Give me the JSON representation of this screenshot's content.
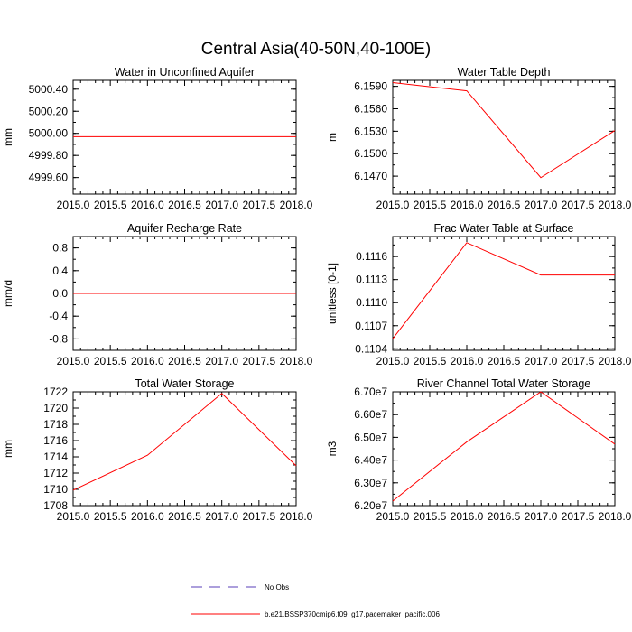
{
  "figure": {
    "title": "Central Asia(40-50N,40-100E)",
    "legend": [
      {
        "label": "No Obs",
        "color": "#5a3fb8",
        "dash": "dashed"
      },
      {
        "label": "b.e21.BSSP370cmip6.f09_g17.pacemaker_pacific.006",
        "color": "#ff0000",
        "dash": "solid"
      }
    ]
  },
  "chart_data": [
    {
      "type": "line",
      "title": "Water in Unconfined Aquifer",
      "ylabel": "mm",
      "xlim": [
        2015.0,
        2018.0
      ],
      "ylim": [
        4999.45,
        5000.48
      ],
      "x_ticks": [
        "2015.0",
        "2015.5",
        "2016.0",
        "2016.5",
        "2017.0",
        "2017.5",
        "2018.0"
      ],
      "y_ticks": [
        {
          "value": 5000.4,
          "label": "5000.40"
        },
        {
          "value": 5000.2,
          "label": "5000.20"
        },
        {
          "value": 5000.0,
          "label": "5000.00"
        },
        {
          "value": 4999.8,
          "label": "4999.80"
        },
        {
          "value": 4999.6,
          "label": "4999.60"
        }
      ],
      "x": [
        2015,
        2016,
        2017,
        2018
      ],
      "series": [
        {
          "values": [
            4999.97,
            4999.97,
            4999.97,
            4999.97
          ]
        }
      ]
    },
    {
      "type": "line",
      "title": "Water Table Depth",
      "ylabel": "m",
      "xlim": [
        2015.0,
        2018.0
      ],
      "ylim": [
        6.1446,
        6.1598
      ],
      "x_ticks": [
        "2015.0",
        "2015.5",
        "2016.0",
        "2016.5",
        "2017.0",
        "2017.5",
        "2018.0"
      ],
      "y_ticks": [
        {
          "value": 6.159,
          "label": "6.1590"
        },
        {
          "value": 6.156,
          "label": "6.1560"
        },
        {
          "value": 6.153,
          "label": "6.1530"
        },
        {
          "value": 6.15,
          "label": "6.1500"
        },
        {
          "value": 6.147,
          "label": "6.1470"
        }
      ],
      "x": [
        2015,
        2016,
        2017,
        2018
      ],
      "series": [
        {
          "values": [
            6.1595,
            6.1584,
            6.1468,
            6.1531
          ]
        }
      ]
    },
    {
      "type": "line",
      "title": "Aquifer Recharge Rate",
      "ylabel": "mm/d",
      "xlim": [
        2015.0,
        2018.0
      ],
      "ylim": [
        -1.0,
        1.0
      ],
      "x_ticks": [
        "2015.0",
        "2015.5",
        "2016.0",
        "2016.5",
        "2017.0",
        "2017.5",
        "2018.0"
      ],
      "y_ticks": [
        {
          "value": 0.8,
          "label": "0.8"
        },
        {
          "value": 0.4,
          "label": "0.4"
        },
        {
          "value": 0.0,
          "label": "0.0"
        },
        {
          "value": -0.4,
          "label": "-0.4"
        },
        {
          "value": -0.8,
          "label": "-0.8"
        }
      ],
      "x": [
        2015,
        2016,
        2017,
        2018
      ],
      "series": [
        {
          "values": [
            0.0,
            0.0,
            0.0,
            0.0
          ]
        }
      ]
    },
    {
      "type": "line",
      "title": "Frac Water Table at Surface",
      "ylabel": "unitless [0-1]",
      "xlim": [
        2015.0,
        2018.0
      ],
      "ylim": [
        0.11038,
        0.11186
      ],
      "x_ticks": [
        "2015.0",
        "2015.5",
        "2016.0",
        "2016.5",
        "2017.0",
        "2017.5",
        "2018.0"
      ],
      "y_ticks": [
        {
          "value": 0.1116,
          "label": "0.1116"
        },
        {
          "value": 0.1113,
          "label": "0.1113"
        },
        {
          "value": 0.111,
          "label": "0.1110"
        },
        {
          "value": 0.1107,
          "label": "0.1107"
        },
        {
          "value": 0.1104,
          "label": "0.1104"
        }
      ],
      "x": [
        2015,
        2016,
        2017,
        2018
      ],
      "series": [
        {
          "values": [
            0.11053,
            0.11178,
            0.11136,
            0.11136
          ]
        }
      ]
    },
    {
      "type": "line",
      "title": "Total Water Storage",
      "ylabel": "mm",
      "xlim": [
        2015.0,
        2018.0
      ],
      "ylim": [
        1708.0,
        1722.0
      ],
      "x_ticks": [
        "2015.0",
        "2015.5",
        "2016.0",
        "2016.5",
        "2017.0",
        "2017.5",
        "2018.0"
      ],
      "y_ticks": [
        {
          "value": 1722,
          "label": "1722"
        },
        {
          "value": 1720,
          "label": "1720"
        },
        {
          "value": 1718,
          "label": "1718"
        },
        {
          "value": 1716,
          "label": "1716"
        },
        {
          "value": 1714,
          "label": "1714"
        },
        {
          "value": 1712,
          "label": "1712"
        },
        {
          "value": 1710,
          "label": "1710"
        },
        {
          "value": 1708,
          "label": "1708"
        }
      ],
      "x": [
        2015,
        2016,
        2017,
        2018
      ],
      "series": [
        {
          "values": [
            1709.9,
            1714.2,
            1721.8,
            1712.9
          ]
        }
      ]
    },
    {
      "type": "line",
      "title": "River Channel Total Water Storage",
      "ylabel": "m3",
      "xlim": [
        2015.0,
        2018.0
      ],
      "ylim": [
        62000000,
        67000000
      ],
      "x_ticks": [
        "2015.0",
        "2015.5",
        "2016.0",
        "2016.5",
        "2017.0",
        "2017.5",
        "2018.0"
      ],
      "y_ticks": [
        {
          "value": 67000000,
          "label": "6.70e7"
        },
        {
          "value": 66000000,
          "label": "6.60e7"
        },
        {
          "value": 65000000,
          "label": "6.50e7"
        },
        {
          "value": 64000000,
          "label": "6.40e7"
        },
        {
          "value": 63000000,
          "label": "6.30e7"
        },
        {
          "value": 62000000,
          "label": "6.20e7"
        }
      ],
      "x": [
        2015,
        2016,
        2017,
        2018
      ],
      "series": [
        {
          "values": [
            62200000,
            64800000,
            67000000,
            64700000
          ]
        }
      ]
    }
  ]
}
